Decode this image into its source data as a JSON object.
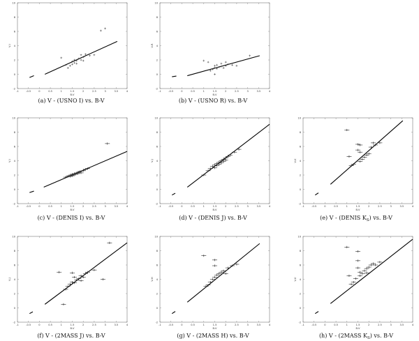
{
  "chart_data": [
    {
      "type": "scatter",
      "caption": "(a) V - (USNO I) vs. B-V",
      "xlabel": "B-V",
      "ylabel": "V-I",
      "xlim": [
        -1,
        4
      ],
      "ylim": [
        -2,
        10
      ],
      "xticks": [
        "-1",
        "-0.5",
        "0",
        "0.5",
        "1",
        "1.5",
        "2",
        "2.5",
        "3",
        "3.5",
        "4"
      ],
      "yticks": [
        "-2",
        "0",
        "2",
        "4",
        "6",
        "8",
        "10"
      ],
      "fit": [
        [
          0.25,
          0.0
        ],
        [
          3.55,
          4.6
        ]
      ],
      "reference_dash": [
        [
          -0.45,
          -0.45
        ],
        [
          -0.25,
          -0.2
        ]
      ],
      "points": [
        [
          1.0,
          2.3
        ],
        [
          1.2,
          1.3
        ],
        [
          1.3,
          0.9
        ],
        [
          1.4,
          1.2
        ],
        [
          1.5,
          1.8
        ],
        [
          1.5,
          1.4
        ],
        [
          1.6,
          2.0
        ],
        [
          1.6,
          1.6
        ],
        [
          1.7,
          1.9
        ],
        [
          1.7,
          1.5
        ],
        [
          1.8,
          2.2
        ],
        [
          1.9,
          2.0
        ],
        [
          1.9,
          2.7
        ],
        [
          2.0,
          2.4
        ],
        [
          2.0,
          1.9
        ],
        [
          2.1,
          2.8
        ],
        [
          2.3,
          2.6
        ],
        [
          2.5,
          2.7
        ],
        [
          2.8,
          6.1
        ],
        [
          3.0,
          6.4
        ]
      ],
      "error_bars": false
    },
    {
      "type": "scatter",
      "caption": "(b) V - (USNO R) vs. B-V",
      "xlabel": "B-V",
      "ylabel": "V-R",
      "xlim": [
        -1,
        4
      ],
      "ylim": [
        -2,
        10
      ],
      "xticks": [
        "-1",
        "-0.5",
        "0",
        "0.5",
        "1",
        "1.5",
        "2",
        "2.5",
        "3",
        "3.5",
        "4"
      ],
      "yticks": [
        "-2",
        "0",
        "2",
        "4",
        "6",
        "8",
        "10"
      ],
      "fit": [
        [
          0.25,
          -0.2
        ],
        [
          3.55,
          2.6
        ]
      ],
      "reference_dash": [
        [
          -0.45,
          -0.35
        ],
        [
          -0.25,
          -0.25
        ]
      ],
      "points": [
        [
          1.0,
          1.9
        ],
        [
          1.2,
          1.7
        ],
        [
          1.3,
          0.5
        ],
        [
          1.4,
          0.7
        ],
        [
          1.5,
          0.9
        ],
        [
          1.5,
          1.2
        ],
        [
          1.6,
          0.8
        ],
        [
          1.6,
          1.3
        ],
        [
          1.7,
          1.0
        ],
        [
          1.8,
          1.1
        ],
        [
          1.8,
          1.5
        ],
        [
          1.9,
          0.9
        ],
        [
          2.0,
          1.2
        ],
        [
          2.0,
          1.7
        ],
        [
          2.1,
          1.4
        ],
        [
          2.3,
          1.3
        ],
        [
          2.5,
          1.2
        ],
        [
          3.1,
          2.6
        ],
        [
          1.5,
          0.0
        ]
      ],
      "error_bars": false
    },
    {
      "type": "scatter",
      "caption": "(c) V - (DENIS I) vs. B-V",
      "xlabel": "B-V",
      "ylabel": "V-I",
      "xlim": [
        -1,
        4
      ],
      "ylim": [
        -2,
        10
      ],
      "xticks": [
        "-1",
        "-0.5",
        "0",
        "0.5",
        "1",
        "1.5",
        "2",
        "2.5",
        "3",
        "3.5",
        "4"
      ],
      "yticks": [
        "-2",
        "0",
        "2",
        "4",
        "6",
        "8",
        "10"
      ],
      "fit": [
        [
          0.2,
          0.3
        ],
        [
          4.0,
          5.3
        ]
      ],
      "reference_dash": [
        [
          -0.45,
          -0.45
        ],
        [
          -0.25,
          -0.25
        ]
      ],
      "points": [
        [
          1.2,
          1.7
        ],
        [
          1.3,
          1.8
        ],
        [
          1.35,
          1.9
        ],
        [
          1.4,
          1.8
        ],
        [
          1.45,
          2.0
        ],
        [
          1.5,
          1.9
        ],
        [
          1.5,
          2.1
        ],
        [
          1.55,
          2.0
        ],
        [
          1.6,
          2.2
        ],
        [
          1.65,
          2.1
        ],
        [
          1.7,
          2.3
        ],
        [
          1.75,
          2.2
        ],
        [
          1.8,
          2.4
        ],
        [
          1.85,
          2.5
        ],
        [
          1.9,
          2.3
        ],
        [
          2.0,
          2.6
        ],
        [
          2.1,
          2.8
        ],
        [
          2.2,
          2.9
        ],
        [
          3.1,
          6.4
        ]
      ],
      "error_bars": true
    },
    {
      "type": "scatter",
      "caption": "(d) V - (DENIS J) vs. B-V",
      "xlabel": "B-V",
      "ylabel": "V-J",
      "xlim": [
        -1,
        4
      ],
      "ylim": [
        -2,
        10
      ],
      "xticks": [
        "-1",
        "-0.5",
        "0",
        "0.5",
        "1",
        "1.5",
        "2",
        "2.5",
        "3",
        "3.5",
        "4"
      ],
      "yticks": [
        "-2",
        "0",
        "2",
        "4",
        "6",
        "8",
        "10"
      ],
      "fit": [
        [
          0.25,
          0.3
        ],
        [
          4.0,
          9.1
        ]
      ],
      "reference_dash": [
        [
          -0.45,
          -0.8
        ],
        [
          -0.3,
          -0.55
        ]
      ],
      "points": [
        [
          1.0,
          2.0
        ],
        [
          1.2,
          2.6
        ],
        [
          1.3,
          2.9
        ],
        [
          1.4,
          3.2
        ],
        [
          1.5,
          3.4
        ],
        [
          1.5,
          3.0
        ],
        [
          1.6,
          3.6
        ],
        [
          1.6,
          3.3
        ],
        [
          1.7,
          3.8
        ],
        [
          1.7,
          3.5
        ],
        [
          1.8,
          4.0
        ],
        [
          1.8,
          3.7
        ],
        [
          1.9,
          4.2
        ],
        [
          1.9,
          3.9
        ],
        [
          2.0,
          4.4
        ],
        [
          2.0,
          4.1
        ],
        [
          2.1,
          4.6
        ],
        [
          2.2,
          4.8
        ],
        [
          2.4,
          5.2
        ],
        [
          2.6,
          5.6
        ]
      ],
      "error_bars": true
    },
    {
      "type": "scatter",
      "caption": "(e) V - (DENIS K",
      "caption_sub": "S",
      "caption_tail": ") vs. B-V",
      "xlabel": "B-V",
      "ylabel": "V-K",
      "xlim": [
        -1,
        4
      ],
      "ylim": [
        -2,
        10
      ],
      "xticks": [
        "-1",
        "-0.5",
        "0",
        "0.5",
        "1",
        "1.5",
        "2",
        "2.5",
        "3",
        "3.5",
        "4"
      ],
      "yticks": [
        "-2",
        "0",
        "2",
        "4",
        "6",
        "8",
        "10"
      ],
      "fit": [
        [
          0.25,
          0.7
        ],
        [
          3.55,
          9.6
        ]
      ],
      "reference_dash": [
        [
          -0.45,
          -0.8
        ],
        [
          -0.3,
          -0.5
        ]
      ],
      "points": [
        [
          1.0,
          8.3
        ],
        [
          1.1,
          4.6
        ],
        [
          1.2,
          3.3
        ],
        [
          1.3,
          3.5
        ],
        [
          1.5,
          6.3
        ],
        [
          1.5,
          5.5
        ],
        [
          1.6,
          6.2
        ],
        [
          1.6,
          5.2
        ],
        [
          1.6,
          3.9
        ],
        [
          1.7,
          4.2
        ],
        [
          1.8,
          4.5
        ],
        [
          1.9,
          4.8
        ],
        [
          2.0,
          5.0
        ],
        [
          2.1,
          5.9
        ],
        [
          2.2,
          6.5
        ],
        [
          2.3,
          6.2
        ],
        [
          2.5,
          6.5
        ]
      ],
      "error_bars": true
    },
    {
      "type": "scatter",
      "caption": "(f) V - (2MASS J) vs. B-V",
      "xlabel": "B-V",
      "ylabel": "V-J",
      "xlim": [
        -1,
        4
      ],
      "ylim": [
        -2,
        10
      ],
      "xticks": [
        "-1",
        "-0.5",
        "0",
        "0.5",
        "1",
        "1.5",
        "2",
        "2.5",
        "3",
        "3.5",
        "4"
      ],
      "yticks": [
        "-2",
        "0",
        "2",
        "4",
        "6",
        "8",
        "10"
      ],
      "fit": [
        [
          0.25,
          0.5
        ],
        [
          4.0,
          9.1
        ]
      ],
      "reference_dash": [
        [
          -0.45,
          -0.8
        ],
        [
          -0.3,
          -0.55
        ]
      ],
      "points": [
        [
          0.9,
          5.0
        ],
        [
          1.1,
          0.5
        ],
        [
          1.2,
          2.6
        ],
        [
          1.3,
          3.0
        ],
        [
          1.4,
          3.3
        ],
        [
          1.5,
          4.9
        ],
        [
          1.5,
          3.6
        ],
        [
          1.6,
          4.3
        ],
        [
          1.6,
          3.5
        ],
        [
          1.7,
          3.9
        ],
        [
          1.8,
          4.1
        ],
        [
          1.9,
          4.5
        ],
        [
          1.9,
          3.8
        ],
        [
          2.0,
          4.3
        ],
        [
          2.1,
          4.8
        ],
        [
          2.2,
          5.0
        ],
        [
          2.5,
          5.3
        ],
        [
          2.9,
          4.0
        ],
        [
          3.2,
          9.1
        ]
      ],
      "error_bars": true
    },
    {
      "type": "scatter",
      "caption": "(g) V - (2MASS H) vs. B-V",
      "xlabel": "B-V",
      "ylabel": "V-H",
      "xlim": [
        -1,
        4
      ],
      "ylim": [
        -2,
        10
      ],
      "xticks": [
        "-1",
        "-0.5",
        "0",
        "0.5",
        "1",
        "1.5",
        "2",
        "2.5",
        "3",
        "3.5",
        "4"
      ],
      "yticks": [
        "-2",
        "0",
        "2",
        "4",
        "6",
        "8",
        "10"
      ],
      "fit": [
        [
          0.25,
          0.8
        ],
        [
          3.55,
          9.0
        ]
      ],
      "reference_dash": [
        [
          -0.45,
          -0.8
        ],
        [
          -0.3,
          -0.5
        ]
      ],
      "points": [
        [
          1.0,
          7.3
        ],
        [
          1.1,
          3.0
        ],
        [
          1.2,
          3.2
        ],
        [
          1.3,
          3.6
        ],
        [
          1.4,
          4.0
        ],
        [
          1.5,
          6.7
        ],
        [
          1.5,
          5.9
        ],
        [
          1.5,
          4.3
        ],
        [
          1.6,
          4.6
        ],
        [
          1.7,
          4.8
        ],
        [
          1.8,
          5.0
        ],
        [
          1.9,
          5.2
        ],
        [
          2.0,
          4.8
        ],
        [
          2.1,
          5.6
        ],
        [
          2.3,
          5.9
        ],
        [
          2.5,
          6.1
        ]
      ],
      "error_bars": true
    },
    {
      "type": "scatter",
      "caption": "(h) V - (2MASS K",
      "caption_sub": "S",
      "caption_tail": ") vs. B-V",
      "xlabel": "B-V",
      "ylabel": "V-K",
      "xlim": [
        -1,
        4
      ],
      "ylim": [
        -2,
        10
      ],
      "xticks": [
        "-1",
        "-0.5",
        "0",
        "0.5",
        "1",
        "1.5",
        "2",
        "2.5",
        "3",
        "3.5",
        "4"
      ],
      "yticks": [
        "-2",
        "0",
        "2",
        "4",
        "6",
        "8",
        "10"
      ],
      "fit": [
        [
          0.25,
          0.6
        ],
        [
          4.0,
          9.6
        ]
      ],
      "reference_dash": [
        [
          -0.45,
          -0.8
        ],
        [
          -0.3,
          -0.5
        ]
      ],
      "points": [
        [
          1.0,
          8.5
        ],
        [
          1.1,
          4.5
        ],
        [
          1.2,
          3.3
        ],
        [
          1.3,
          3.6
        ],
        [
          1.4,
          4.1
        ],
        [
          1.5,
          7.9
        ],
        [
          1.5,
          6.6
        ],
        [
          1.5,
          5.6
        ],
        [
          1.6,
          4.5
        ],
        [
          1.6,
          5.0
        ],
        [
          1.7,
          4.8
        ],
        [
          1.8,
          5.2
        ],
        [
          1.9,
          5.5
        ],
        [
          1.9,
          4.9
        ],
        [
          2.0,
          5.7
        ],
        [
          2.1,
          6.0
        ],
        [
          2.2,
          6.2
        ],
        [
          2.3,
          6.0
        ],
        [
          2.5,
          6.4
        ]
      ],
      "error_bars": true
    }
  ]
}
